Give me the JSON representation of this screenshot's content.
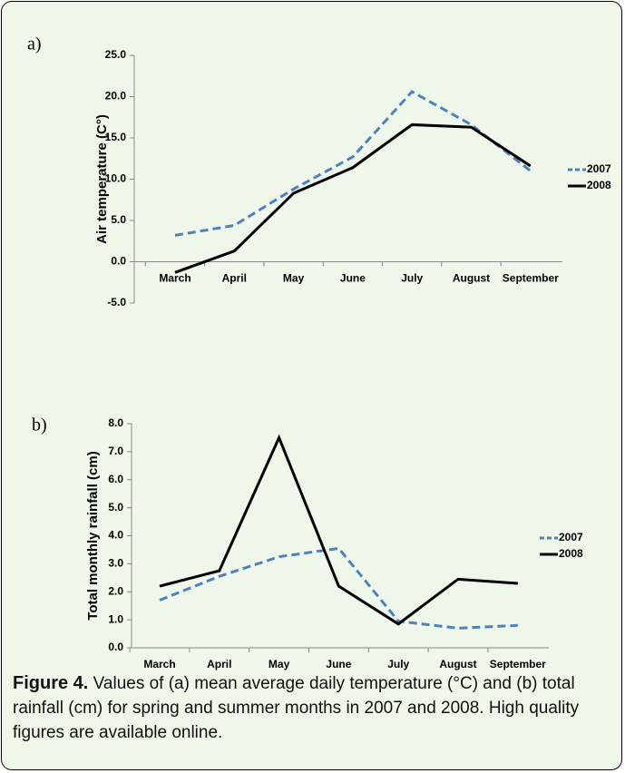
{
  "charts": [
    {
      "type": "line",
      "panel_label": "a)",
      "y_label": "Air temperature (C°)",
      "categories": [
        "March",
        "April",
        "May",
        "June",
        "July",
        "August",
        "September"
      ],
      "series": [
        {
          "name": "2007",
          "color": "#4f81bd",
          "style": "dashed",
          "values": [
            3.2,
            4.4,
            8.8,
            12.7,
            20.6,
            16.6,
            11.0
          ]
        },
        {
          "name": "2008",
          "color": "#000000",
          "style": "solid",
          "values": [
            -1.3,
            1.3,
            8.3,
            11.4,
            16.6,
            16.3,
            11.6
          ]
        }
      ],
      "ylim": [
        -5,
        25
      ],
      "yticks": [
        {
          "value": -5,
          "label": "-5.0"
        },
        {
          "value": 0,
          "label": "0.0"
        },
        {
          "value": 5,
          "label": "5.0"
        },
        {
          "value": 10,
          "label": "10.0"
        },
        {
          "value": 15,
          "label": "15.0"
        },
        {
          "value": 20,
          "label": "20.0"
        },
        {
          "value": 25,
          "label": "25.0"
        }
      ],
      "legend": "right"
    },
    {
      "type": "line",
      "panel_label": "b)",
      "y_label": "Total monthly rainfall (cm)",
      "categories": [
        "March",
        "April",
        "May",
        "June",
        "July",
        "August",
        "September"
      ],
      "series": [
        {
          "name": "2007",
          "color": "#4f81bd",
          "style": "dashed",
          "values": [
            1.7,
            2.55,
            3.25,
            3.55,
            0.95,
            0.7,
            0.8
          ]
        },
        {
          "name": "2008",
          "color": "#000000",
          "style": "solid",
          "values": [
            2.2,
            2.75,
            7.5,
            2.2,
            0.85,
            2.45,
            2.3
          ]
        }
      ],
      "ylim": [
        0,
        8
      ],
      "yticks": [
        {
          "value": 0,
          "label": "0.0"
        },
        {
          "value": 1,
          "label": "1.0"
        },
        {
          "value": 2,
          "label": "2.0"
        },
        {
          "value": 3,
          "label": "3.0"
        },
        {
          "value": 4,
          "label": "4.0"
        },
        {
          "value": 5,
          "label": "5.0"
        },
        {
          "value": 6,
          "label": "6.0"
        },
        {
          "value": 7,
          "label": "7.0"
        },
        {
          "value": 8,
          "label": "8.0"
        }
      ],
      "legend": "right"
    }
  ],
  "caption": {
    "label": "Figure 4.",
    "text": " Values of (a) mean average daily temperature (°C) and (b) total rainfall (cm) for spring and summer months in 2007 and 2008. High quality figures are available online."
  }
}
